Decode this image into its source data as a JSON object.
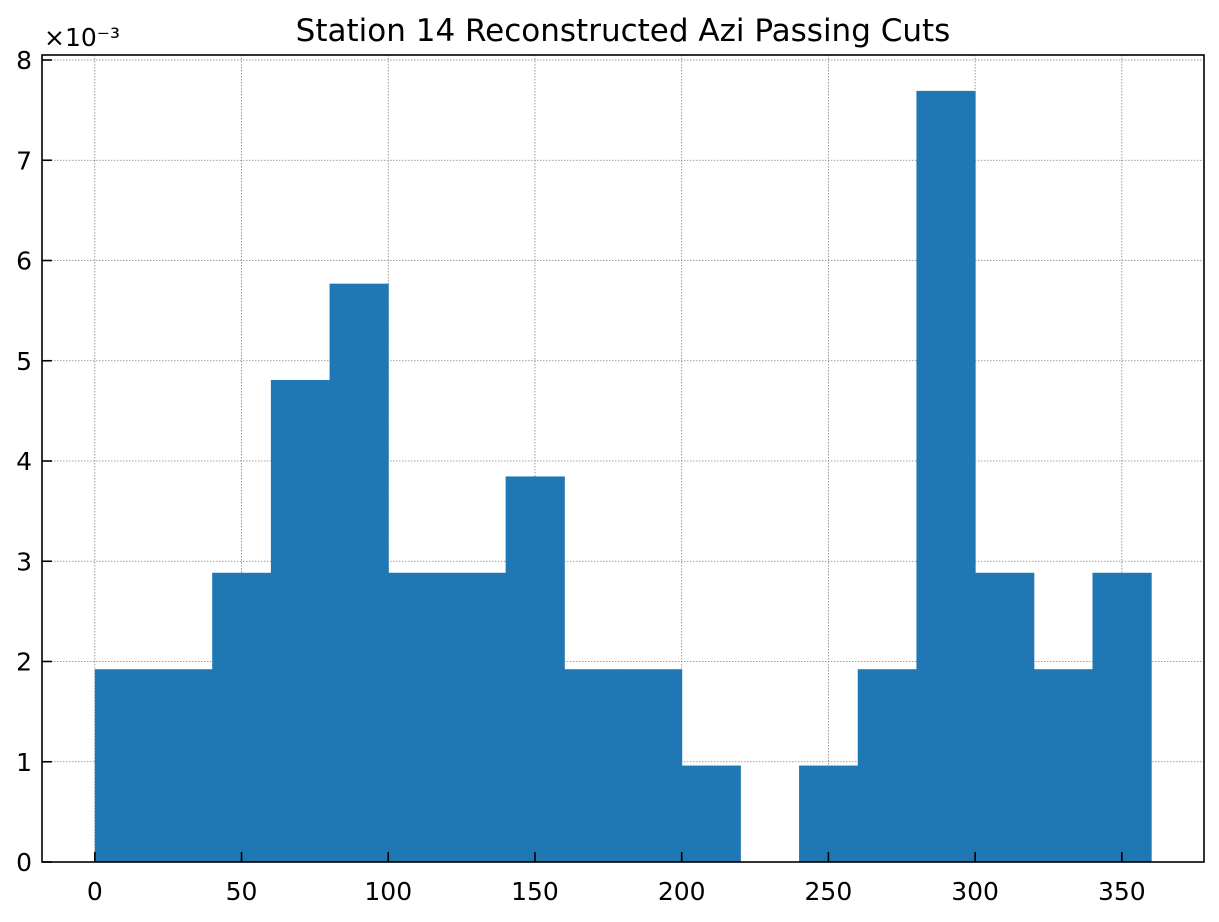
{
  "chart_data": {
    "type": "bar",
    "title": "Station 14 Reconstructed Azi Passing Cuts",
    "xlabel": "",
    "ylabel": "",
    "y_offset_label": "×10⁻³",
    "xlim": [
      -18,
      378
    ],
    "ylim": [
      0,
      8.0
    ],
    "x_ticks": [
      "0",
      "50",
      "100",
      "150",
      "200",
      "250",
      "300",
      "350"
    ],
    "x_tick_values": [
      0,
      50,
      100,
      150,
      200,
      250,
      300,
      350
    ],
    "y_ticks": [
      "0",
      "1",
      "2",
      "3",
      "4",
      "5",
      "6",
      "7",
      "8"
    ],
    "y_tick_values": [
      0,
      1,
      2,
      3,
      4,
      5,
      6,
      7,
      8
    ],
    "bin_width": 20,
    "bin_edges": [
      0,
      20,
      40,
      60,
      80,
      100,
      120,
      140,
      160,
      180,
      200,
      220,
      240,
      260,
      280,
      300,
      320,
      340,
      360
    ],
    "values": [
      1.923,
      1.923,
      2.885,
      4.808,
      5.769,
      2.885,
      2.885,
      3.846,
      1.923,
      1.923,
      0.962,
      0,
      0.962,
      1.923,
      7.692,
      2.885,
      1.923,
      2.885
    ],
    "color": "#1f77b4",
    "grid": true
  }
}
